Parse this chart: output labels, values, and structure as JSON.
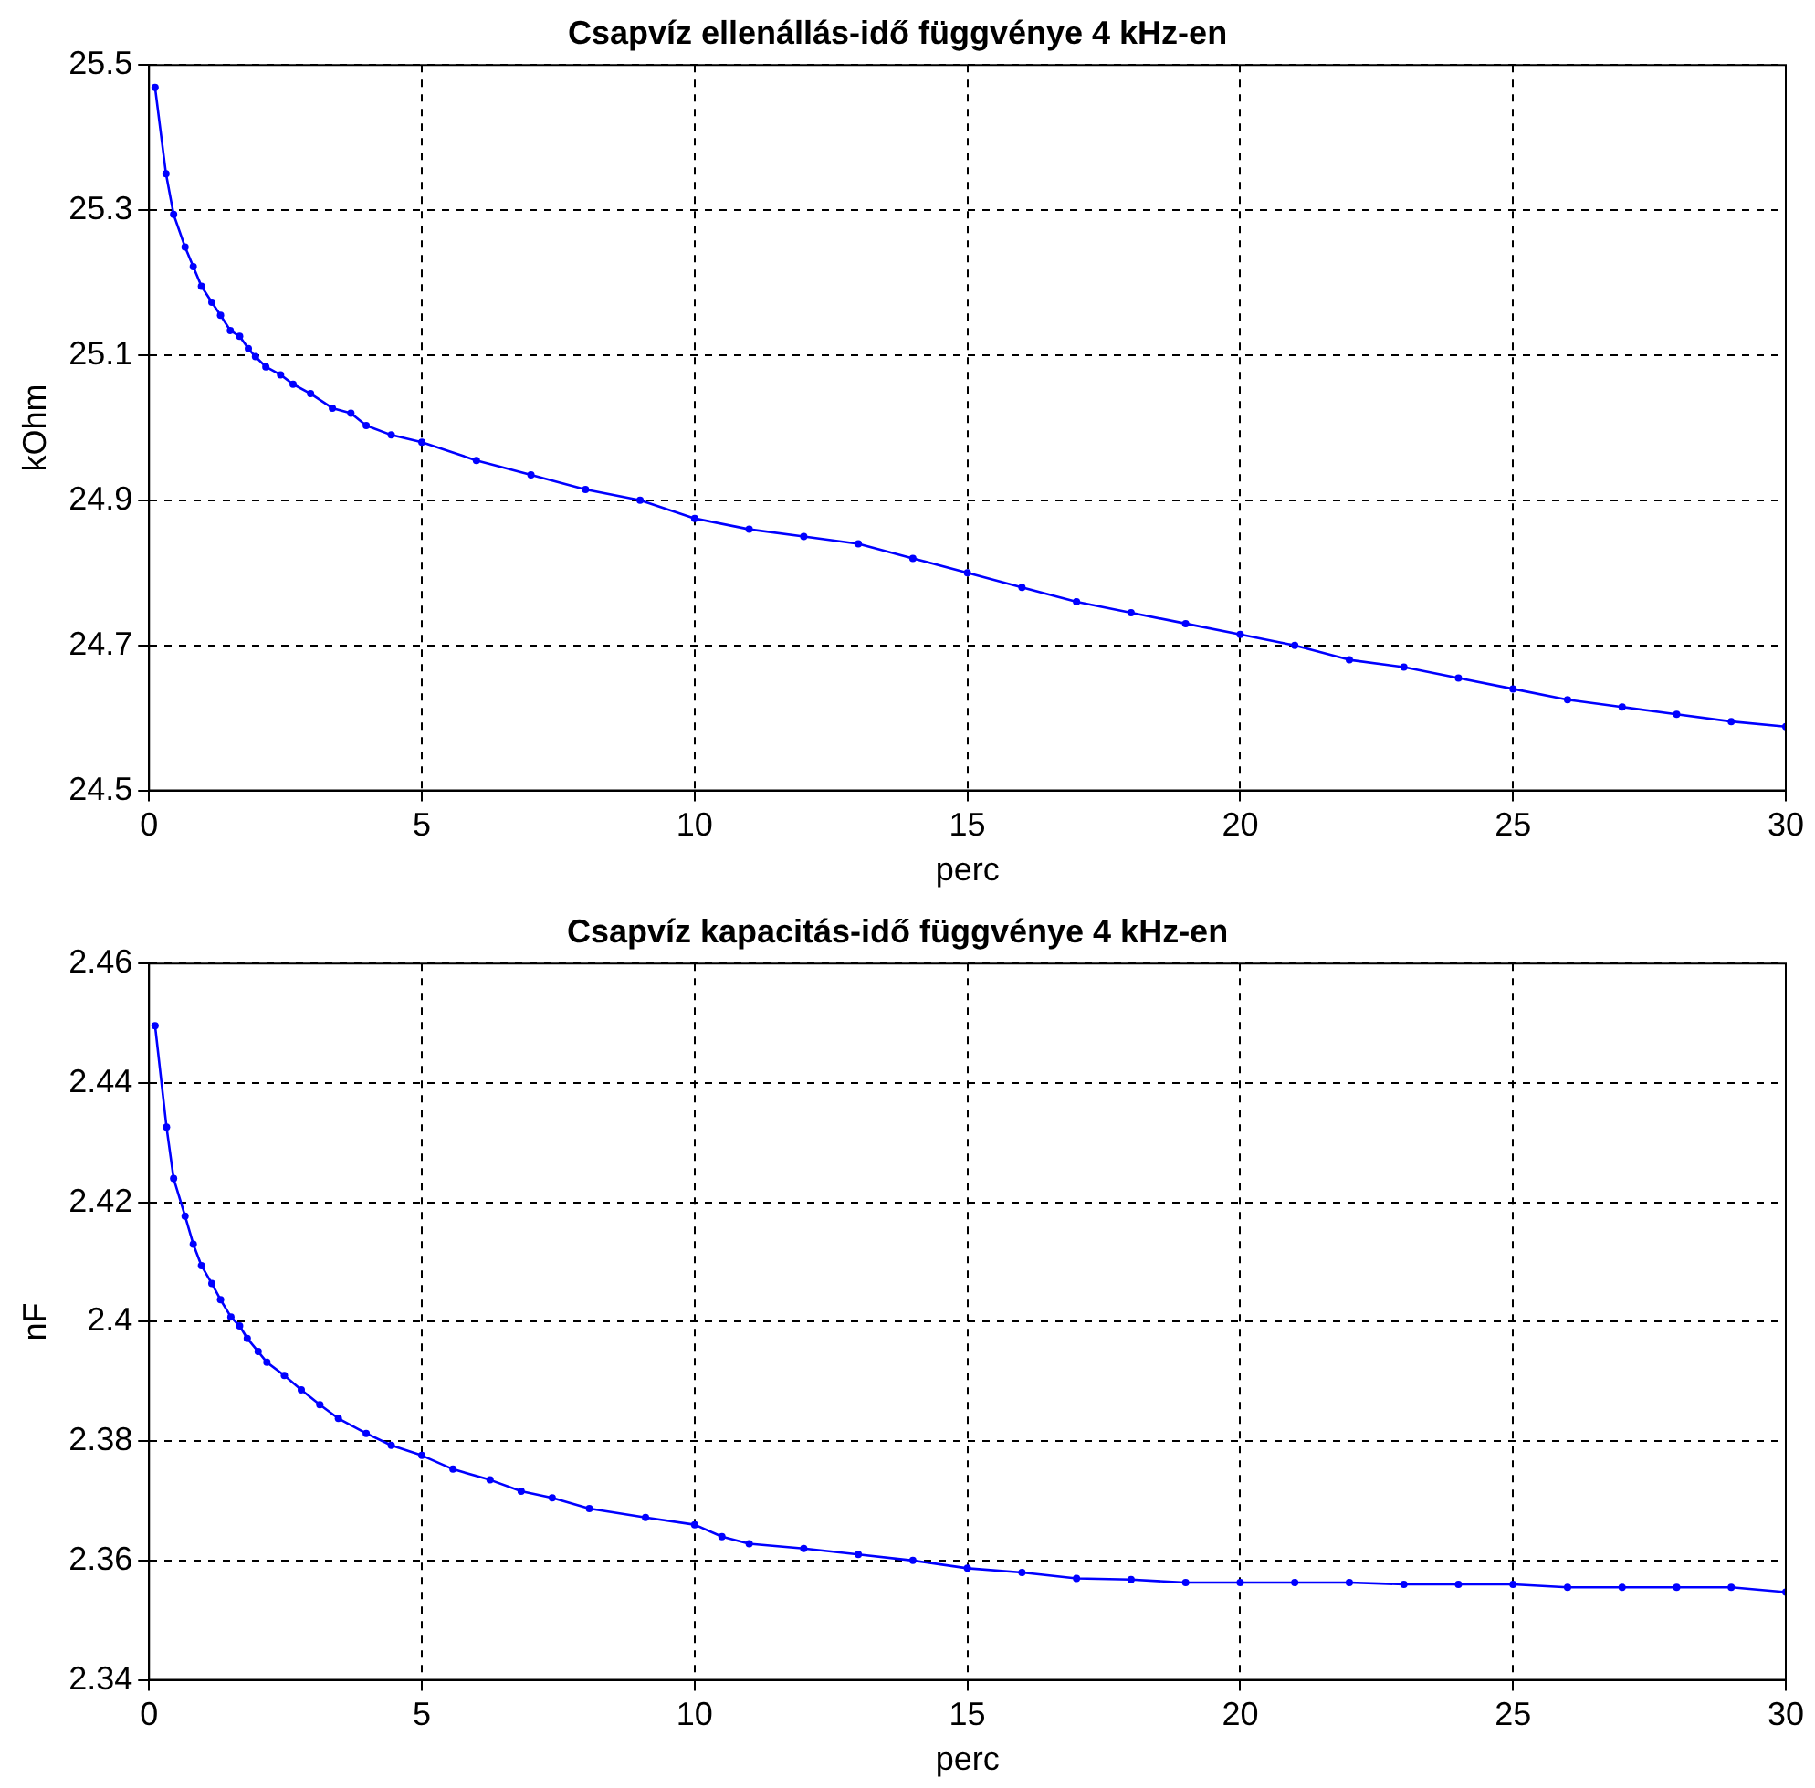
{
  "chart_data": [
    {
      "type": "line",
      "title": "Csapvíz ellenállás-idő függvénye 4 kHz-en",
      "xlabel": "perc",
      "ylabel": "kOhm",
      "xlim": [
        0,
        30
      ],
      "xticks": [
        0,
        5,
        10,
        15,
        20,
        25,
        30
      ],
      "ylim": [
        24.5,
        25.5
      ],
      "yticks": [
        24.5,
        24.7,
        24.9,
        25.1,
        25.3,
        25.5
      ],
      "grid": true,
      "marker": "circle",
      "line_style": "solid",
      "x": [
        0.11,
        0.31,
        0.45,
        0.66,
        0.81,
        0.96,
        1.15,
        1.31,
        1.49,
        1.66,
        1.82,
        1.95,
        2.14,
        2.41,
        2.64,
        2.96,
        3.36,
        3.7,
        3.98,
        4.44,
        5,
        6,
        7,
        8,
        9,
        10,
        11,
        12,
        13,
        14,
        15,
        16,
        17,
        18,
        19,
        20,
        21,
        22,
        23,
        24,
        25,
        26,
        27,
        28,
        29,
        30
      ],
      "series": [
        {
          "color": "#0000ff",
          "values": [
            25.469,
            25.35,
            25.294,
            25.249,
            25.222,
            25.195,
            25.173,
            25.155,
            25.134,
            25.126,
            25.109,
            25.098,
            25.084,
            25.073,
            25.06,
            25.047,
            25.027,
            25.02,
            25.003,
            24.99,
            24.98,
            24.955,
            24.935,
            24.915,
            24.9,
            24.875,
            24.86,
            24.85,
            24.84,
            24.82,
            24.8,
            24.78,
            24.76,
            24.745,
            24.73,
            24.715,
            24.7,
            24.68,
            24.67,
            24.655,
            24.64,
            24.625,
            24.615,
            24.605,
            24.595,
            24.588
          ]
        }
      ]
    },
    {
      "type": "line",
      "title": "Csapvíz kapacitás-idő függvénye 4 kHz-en",
      "xlabel": "perc",
      "ylabel": "nF",
      "xlim": [
        0,
        30
      ],
      "xticks": [
        0,
        5,
        10,
        15,
        20,
        25,
        30
      ],
      "ylim": [
        2.34,
        2.46
      ],
      "yticks": [
        2.34,
        2.36,
        2.38,
        2.4,
        2.42,
        2.44,
        2.46
      ],
      "grid": true,
      "marker": "circle",
      "line_style": "solid",
      "x": [
        0.11,
        0.32,
        0.45,
        0.66,
        0.81,
        0.96,
        1.15,
        1.31,
        1.5,
        1.66,
        1.8,
        2,
        2.16,
        2.48,
        2.79,
        3.13,
        3.47,
        3.98,
        4.44,
        5,
        5.57,
        6.25,
        6.82,
        7.39,
        8.07,
        9.1,
        10,
        10.5,
        11,
        12,
        13,
        14,
        15,
        16,
        17,
        18,
        19,
        20,
        21,
        22,
        23,
        24,
        25,
        26,
        27,
        28,
        29,
        30
      ],
      "series": [
        {
          "color": "#0000ff",
          "values": [
            2.4496,
            2.4326,
            2.424,
            2.4177,
            2.413,
            2.4094,
            2.4064,
            2.4037,
            2.4008,
            2.3993,
            2.3972,
            2.395,
            2.3932,
            2.391,
            2.3886,
            2.3861,
            2.3838,
            2.3813,
            2.3793,
            2.3776,
            2.3753,
            2.3735,
            2.3716,
            2.3705,
            2.3687,
            2.3672,
            2.366,
            2.364,
            2.3628,
            2.362,
            2.361,
            2.36,
            2.3587,
            2.358,
            2.357,
            2.3568,
            2.3563,
            2.3563,
            2.3563,
            2.3563,
            2.356,
            2.356,
            2.356,
            2.3555,
            2.3555,
            2.3555,
            2.3555,
            2.3547
          ]
        }
      ]
    }
  ]
}
